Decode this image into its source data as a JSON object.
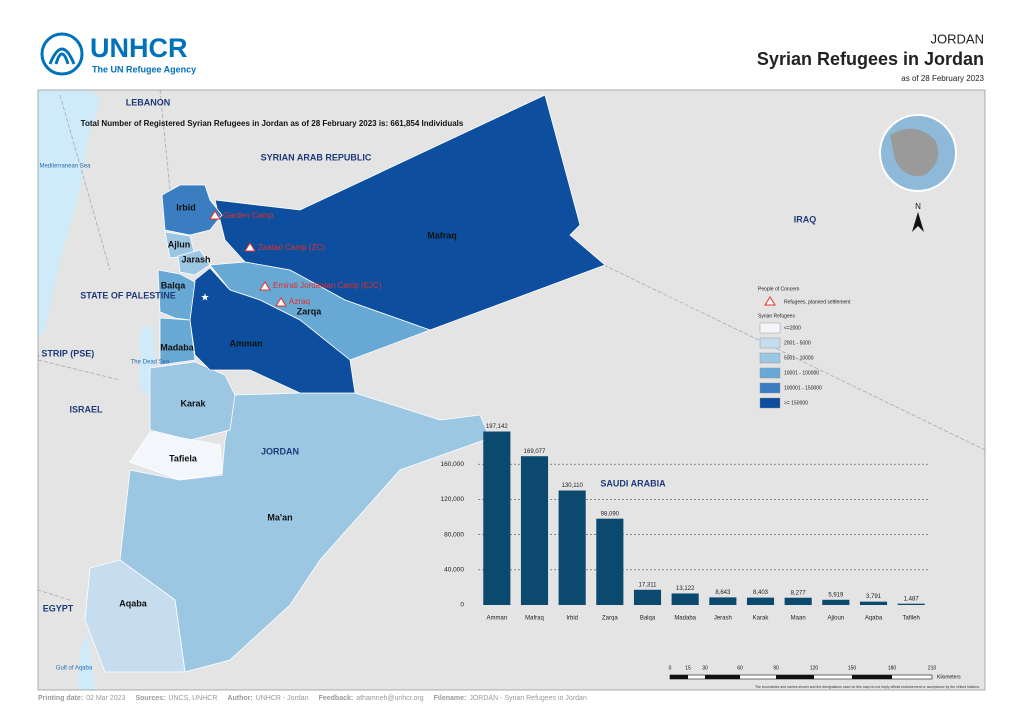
{
  "header": {
    "logo": "UNHCR",
    "logo_subtitle": "The UN Refugee Agency",
    "country": "JORDAN",
    "title": "Syrian Refugees in Jordan",
    "date": "as of 28 February 2023"
  },
  "map": {
    "total_note": "Total Number of Registered Syrian Refugees in Jordan as of 28 February 2023 is: 661,854 Individuals",
    "countries": [
      "LEBANON",
      "SYRIAN ARAB REPUBLIC",
      "IRAQ",
      "STATE OF PALESTINE",
      "GAZA STRIP (PSE)",
      "ISRAEL",
      "EGYPT",
      "SAUDI ARABIA",
      "JORDAN"
    ],
    "waters": [
      "Mediterranean Sea",
      "The Dead Sea",
      "Gulf of Aqaba"
    ],
    "governorates": [
      "Irbid",
      "Ajlun",
      "Jarash",
      "Balqa",
      "Madaba",
      "Amman",
      "Zarqa",
      "Mafraq",
      "Karak",
      "Tafiela",
      "Ma'an",
      "Aqaba"
    ],
    "camps": [
      "Garden Camp",
      "Zaatari Camp (ZC)",
      "Emirati Jordanian Camp (EJC)",
      "Azraq"
    ],
    "north": "N",
    "legend": {
      "title": "People of Concern",
      "camp_label": "Refugees, planned settlement",
      "classes_title": "Syrian Refugees",
      "classes": [
        {
          "label": "<=2000",
          "color": "#f3f7fc"
        },
        {
          "label": "2001 - 5000",
          "color": "#c6dcef"
        },
        {
          "label": "5001 - 10000",
          "color": "#9cc7e3"
        },
        {
          "label": "10001 - 100000",
          "color": "#68a8d5"
        },
        {
          "label": "100001 - 150000",
          "color": "#3a7ec1"
        },
        {
          "label": ">= 150000",
          "color": "#0d4f9e"
        }
      ]
    },
    "scale_bar": {
      "labels": [
        "0",
        "15",
        "30",
        "60",
        "90",
        "120",
        "150",
        "180",
        "210"
      ],
      "unit": "Kilometers"
    },
    "disclaimer": "The boundaries and names shown and the designations used on this map do not imply official endorsement or acceptance by the United Nations."
  },
  "chart_data": {
    "type": "bar",
    "categories": [
      "Amman",
      "Mafraq",
      "Irbid",
      "Zarqa",
      "Balqa",
      "Madaba",
      "Jerash",
      "Karak",
      "Maan",
      "Ajloun",
      "Aqaba",
      "Tafileh"
    ],
    "values": [
      197142,
      169077,
      130110,
      98090,
      17311,
      13122,
      8643,
      8403,
      8277,
      5919,
      3791,
      1487
    ],
    "value_labels": [
      "197,142",
      "169,077",
      "130,110",
      "98,090",
      "17,311",
      "13,122",
      "8,643",
      "8,403",
      "8,277",
      "5,919",
      "3,791",
      "1,487"
    ],
    "color": "#0b4a6e",
    "ylim": [
      0,
      200000
    ],
    "yticks": [
      0,
      {
        "value": 40000,
        "label": "40,000"
      },
      {
        "value": 80000,
        "label": "80,000"
      },
      {
        "value": 120000,
        "label": "120,000"
      },
      {
        "value": 160000,
        "label": "160,000"
      }
    ],
    "grid": true
  },
  "footer": [
    {
      "label": "Printing date:",
      "value": "02 Mar 2023"
    },
    {
      "label": "Sources:",
      "value": "UNCS, UNHCR"
    },
    {
      "label": "Author:",
      "value": "UNHCR - Jordan"
    },
    {
      "label": "Feedback:",
      "value": "athamneh@unhcr.org"
    },
    {
      "label": "Filename:",
      "value": "JORDAN - Syrian Refugees in Jordan"
    }
  ]
}
